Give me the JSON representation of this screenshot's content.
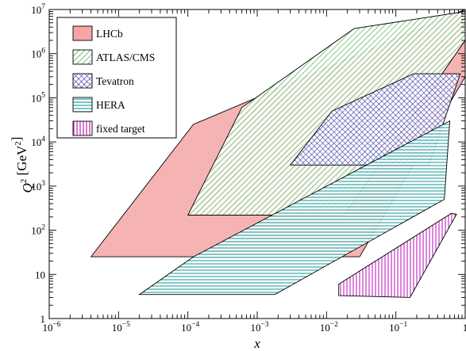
{
  "chart_data": {
    "type": "area",
    "xlabel": "x",
    "ylabel": "Q^2 [GeV^2]",
    "xscale": "log",
    "yscale": "log",
    "xlim": [
      1e-06,
      1
    ],
    "ylim": [
      1,
      10000000
    ],
    "grid": false,
    "legend_position": "top-left",
    "x_tick_labels": [
      {
        "base": "10",
        "exp": "−6"
      },
      {
        "base": "10",
        "exp": "−5"
      },
      {
        "base": "10",
        "exp": "−4"
      },
      {
        "base": "10",
        "exp": "−3"
      },
      {
        "base": "10",
        "exp": "−2"
      },
      {
        "base": "10",
        "exp": "−1"
      },
      {
        "base": "1",
        "exp": ""
      }
    ],
    "y_tick_labels": [
      {
        "base": "1",
        "exp": ""
      },
      {
        "base": "10",
        "exp": ""
      },
      {
        "base": "10",
        "exp": "2"
      },
      {
        "base": "10",
        "exp": "3"
      },
      {
        "base": "10",
        "exp": "4"
      },
      {
        "base": "10",
        "exp": "5"
      },
      {
        "base": "10",
        "exp": "6"
      },
      {
        "base": "10",
        "exp": "7"
      }
    ],
    "series": [
      {
        "name": "LHCb",
        "color": "#f4a6a6",
        "pattern": "solid",
        "polygon": [
          [
            4e-06,
            25
          ],
          [
            0.00012,
            25000
          ],
          [
            1,
            10000000
          ],
          [
            1,
            300000
          ],
          [
            0.03,
            25
          ],
          [
            4.5e-06,
            25
          ]
        ]
      },
      {
        "name": "ATLAS/CMS",
        "color": "#2ca02c",
        "pattern": "diag-up",
        "polygon": [
          [
            0.0001,
            220
          ],
          [
            0.0006,
            60000
          ],
          [
            0.025,
            3700000
          ],
          [
            1,
            9000000
          ],
          [
            1,
            2000000
          ],
          [
            0.018,
            220
          ]
        ]
      },
      {
        "name": "Tevatron",
        "color": "#2a2aa8",
        "pattern": "crosshatch",
        "polygon": [
          [
            0.003,
            3000
          ],
          [
            0.012,
            50000
          ],
          [
            0.18,
            350000
          ],
          [
            0.85,
            350000
          ],
          [
            0.3,
            3000
          ]
        ]
      },
      {
        "name": "HERA",
        "color": "#22a0a0",
        "pattern": "horizontal",
        "polygon": [
          [
            2e-05,
            3.5
          ],
          [
            0.0018,
            3.5
          ],
          [
            0.5,
            500
          ],
          [
            0.6,
            30000
          ],
          [
            0.00012,
            25
          ]
        ]
      },
      {
        "name": "fixed target",
        "color": "#c020c0",
        "pattern": "vertical",
        "polygon": [
          [
            0.015,
            3.3
          ],
          [
            0.16,
            3
          ],
          [
            0.75,
            230
          ],
          [
            0.63,
            240
          ],
          [
            0.015,
            6
          ]
        ]
      }
    ]
  }
}
